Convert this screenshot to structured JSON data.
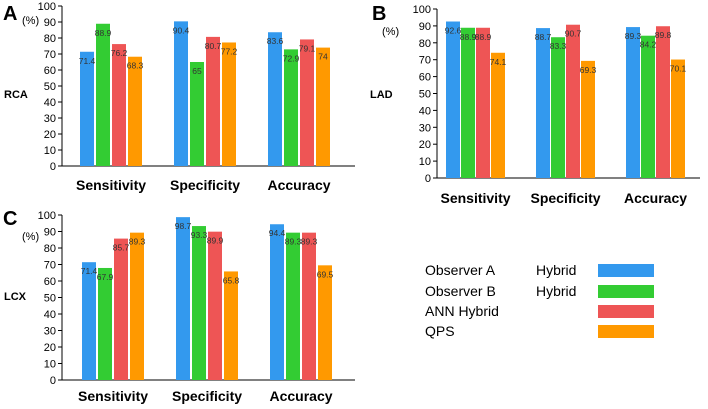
{
  "chart_data": [
    {
      "type": "bar",
      "panel": "A",
      "artery": "RCA",
      "ylabel": "(%)",
      "ylim": [
        0,
        100
      ],
      "yticks": [
        0,
        10,
        20,
        30,
        40,
        50,
        60,
        70,
        80,
        90,
        100
      ],
      "categories": [
        "Sensitivity",
        "Specificity",
        "Accuracy"
      ],
      "series": [
        {
          "name": "Observer A Hybrid",
          "values": [
            71.4,
            90.4,
            83.6
          ]
        },
        {
          "name": "Observer B Hybrid",
          "values": [
            88.9,
            65,
            72.9
          ]
        },
        {
          "name": "ANN Hybrid",
          "values": [
            76.2,
            80.7,
            79.1
          ]
        },
        {
          "name": "QPS",
          "values": [
            68.3,
            77.2,
            74
          ]
        }
      ]
    },
    {
      "type": "bar",
      "panel": "B",
      "artery": "LAD",
      "ylabel": "(%)",
      "ylim": [
        0,
        100
      ],
      "yticks": [
        0,
        10,
        20,
        30,
        40,
        50,
        60,
        70,
        80,
        90,
        100
      ],
      "categories": [
        "Sensitivity",
        "Specificity",
        "Accuracy"
      ],
      "series": [
        {
          "name": "Observer A Hybrid",
          "values": [
            92.6,
            88.7,
            89.3
          ]
        },
        {
          "name": "Observer B Hybrid",
          "values": [
            88.9,
            83.3,
            84.2
          ]
        },
        {
          "name": "ANN Hybrid",
          "values": [
            88.9,
            90.7,
            89.8
          ]
        },
        {
          "name": "QPS",
          "values": [
            74.1,
            69.3,
            70.1
          ]
        }
      ]
    },
    {
      "type": "bar",
      "panel": "C",
      "artery": "LCX",
      "ylabel": "(%)",
      "ylim": [
        0,
        100
      ],
      "yticks": [
        0,
        10,
        20,
        30,
        40,
        50,
        60,
        70,
        80,
        90,
        100
      ],
      "categories": [
        "Sensitivity",
        "Specificity",
        "Accuracy"
      ],
      "series": [
        {
          "name": "Observer A Hybrid",
          "values": [
            71.4,
            98.7,
            94.4
          ]
        },
        {
          "name": "Observer B Hybrid",
          "values": [
            67.9,
            93.3,
            89.3
          ]
        },
        {
          "name": "ANN Hybrid",
          "values": [
            85.7,
            89.9,
            89.3
          ]
        },
        {
          "name": "QPS",
          "values": [
            89.3,
            65.8,
            69.5
          ]
        }
      ]
    }
  ],
  "legend": {
    "items": [
      {
        "label_a": "Observer A",
        "label_b": "Hybrid",
        "color": "#3399ee"
      },
      {
        "label_a": "Observer B",
        "label_b": "Hybrid",
        "color": "#33cc33"
      },
      {
        "label_a": "ANN Hybrid",
        "label_b": "",
        "color": "#ee5555"
      },
      {
        "label_a": "QPS",
        "label_b": "",
        "color": "#ff9900"
      }
    ]
  },
  "colors": [
    "#3399ee",
    "#33cc33",
    "#ee5555",
    "#ff9900"
  ]
}
